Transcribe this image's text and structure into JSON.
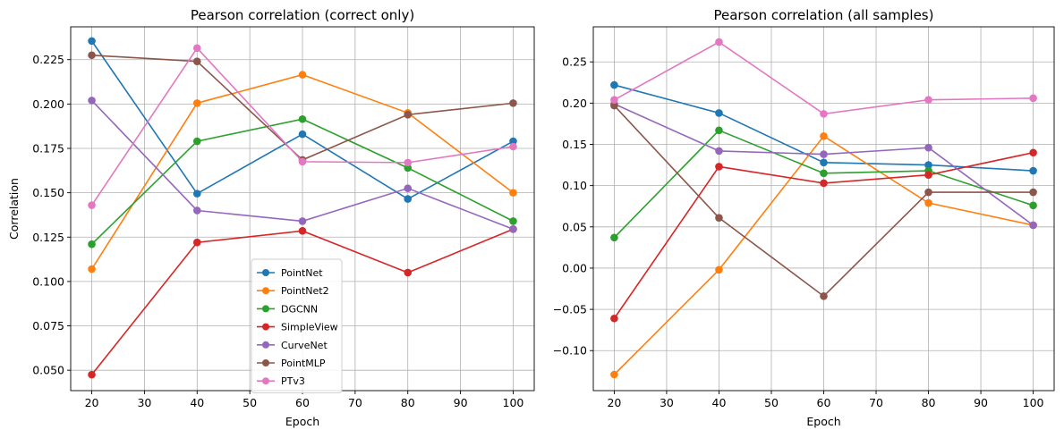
{
  "chart_data": [
    {
      "type": "line",
      "title": "Pearson correlation (correct only)",
      "xlabel": "Epoch",
      "ylabel": "Correlation",
      "grid": true,
      "legend": "lower-center",
      "x": [
        20,
        40,
        60,
        80,
        100
      ],
      "xlim": [
        16,
        104
      ],
      "ylim": [
        0.0385,
        0.2435
      ],
      "xticks": [
        20,
        30,
        40,
        50,
        60,
        70,
        80,
        90,
        100
      ],
      "xtick_labels": [
        "20",
        "30",
        "40",
        "50",
        "60",
        "70",
        "80",
        "90",
        "100"
      ],
      "yticks": [
        0.05,
        0.075,
        0.1,
        0.125,
        0.15,
        0.175,
        0.2,
        0.225
      ],
      "ytick_labels": [
        "0.050",
        "0.075",
        "0.100",
        "0.125",
        "0.150",
        "0.175",
        "0.200",
        "0.225"
      ],
      "series": [
        {
          "name": "PointNet",
          "color": "#1f77b4",
          "values": [
            0.2355,
            0.1495,
            0.183,
            0.1465,
            0.179
          ]
        },
        {
          "name": "PointNet2",
          "color": "#ff7f0e",
          "values": [
            0.107,
            0.2005,
            0.2165,
            0.195,
            0.15
          ]
        },
        {
          "name": "DGCNN",
          "color": "#2ca02c",
          "values": [
            0.121,
            0.179,
            0.1915,
            0.164,
            0.134
          ]
        },
        {
          "name": "SimpleView",
          "color": "#d62728",
          "values": [
            0.0475,
            0.122,
            0.1285,
            0.105,
            0.1295
          ]
        },
        {
          "name": "CurveNet",
          "color": "#9467bd",
          "values": [
            0.202,
            0.14,
            0.134,
            0.1525,
            0.1295
          ]
        },
        {
          "name": "PointMLP",
          "color": "#8c564b",
          "values": [
            0.2275,
            0.224,
            0.1685,
            0.194,
            0.2005
          ]
        },
        {
          "name": "PTv3",
          "color": "#e377c2",
          "values": [
            0.143,
            0.2315,
            0.1675,
            0.167,
            0.176
          ]
        }
      ]
    },
    {
      "type": "line",
      "title": "Pearson correlation (all samples)",
      "xlabel": "Epoch",
      "ylabel": "",
      "grid": true,
      "x": [
        20,
        40,
        60,
        80,
        100
      ],
      "xlim": [
        16,
        104
      ],
      "ylim": [
        -0.1485,
        0.2925
      ],
      "xticks": [
        20,
        30,
        40,
        50,
        60,
        70,
        80,
        90,
        100
      ],
      "xtick_labels": [
        "20",
        "30",
        "40",
        "50",
        "60",
        "70",
        "80",
        "90",
        "100"
      ],
      "yticks": [
        -0.1,
        -0.05,
        0.0,
        0.05,
        0.1,
        0.15,
        0.2,
        0.25
      ],
      "ytick_labels": [
        "−0.10",
        "−0.05",
        "0.00",
        "0.05",
        "0.10",
        "0.15",
        "0.20",
        "0.25"
      ],
      "series": [
        {
          "name": "PointNet",
          "color": "#1f77b4",
          "values": [
            0.222,
            0.188,
            0.128,
            0.125,
            0.118
          ]
        },
        {
          "name": "PointNet2",
          "color": "#ff7f0e",
          "values": [
            -0.129,
            -0.002,
            0.16,
            0.079,
            0.052
          ]
        },
        {
          "name": "DGCNN",
          "color": "#2ca02c",
          "values": [
            0.037,
            0.167,
            0.115,
            0.118,
            0.076
          ]
        },
        {
          "name": "SimpleView",
          "color": "#d62728",
          "values": [
            -0.061,
            0.123,
            0.103,
            0.113,
            0.14
          ]
        },
        {
          "name": "CurveNet",
          "color": "#9467bd",
          "values": [
            0.199,
            0.142,
            0.138,
            0.146,
            0.052
          ]
        },
        {
          "name": "PointMLP",
          "color": "#8c564b",
          "values": [
            0.197,
            0.061,
            -0.034,
            0.092,
            0.092
          ]
        },
        {
          "name": "PTv3",
          "color": "#e377c2",
          "values": [
            0.204,
            0.274,
            0.187,
            0.204,
            0.206
          ]
        }
      ]
    }
  ]
}
